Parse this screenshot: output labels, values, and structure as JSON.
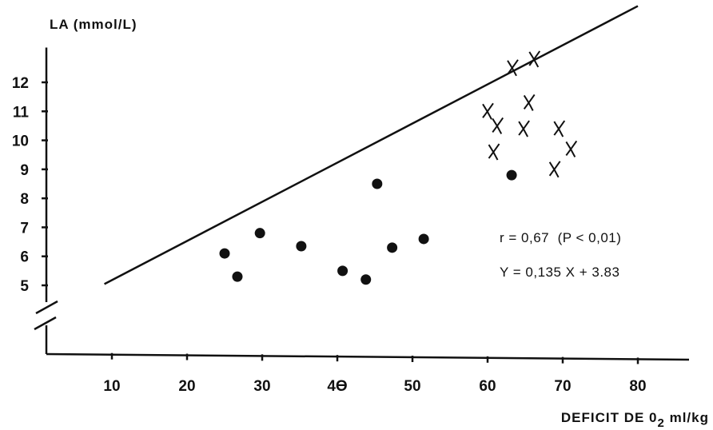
{
  "chart_data": {
    "type": "scatter",
    "ylabel": "LA (mmol/L)",
    "xlabel_main": "DEFICIT DE 0",
    "xlabel_sub": "2",
    "xlabel_unit": "ml/kg",
    "x_ticks": [
      "10",
      "20",
      "30",
      "4ϴ",
      "50",
      "60",
      "70",
      "80"
    ],
    "x_tick_values": [
      10,
      20,
      30,
      40,
      50,
      60,
      70,
      80
    ],
    "y_ticks": [
      "5",
      "6",
      "7",
      "8",
      "9",
      "10",
      "11",
      "12"
    ],
    "y_tick_values": [
      5,
      6,
      7,
      8,
      9,
      10,
      11,
      12
    ],
    "axis_break": true,
    "series": [
      {
        "marker": "dot",
        "points": [
          [
            25,
            6.1
          ],
          [
            26.7,
            5.3
          ],
          [
            29.7,
            6.8
          ],
          [
            35.2,
            6.35
          ],
          [
            40.7,
            5.5
          ],
          [
            43.8,
            5.2
          ],
          [
            45.3,
            8.5
          ],
          [
            47.3,
            6.3
          ],
          [
            51.5,
            6.6
          ],
          [
            63.2,
            8.8
          ]
        ]
      },
      {
        "marker": "x",
        "points": [
          [
            60,
            11.0
          ],
          [
            61.3,
            10.5
          ],
          [
            60.8,
            9.6
          ],
          [
            63.3,
            12.5
          ],
          [
            66.2,
            12.8
          ],
          [
            65.5,
            11.3
          ],
          [
            64.8,
            10.4
          ],
          [
            69.5,
            10.4
          ],
          [
            68.9,
            9.0
          ],
          [
            71.1,
            9.7
          ]
        ]
      }
    ],
    "regression": {
      "slope": 0.135,
      "intercept": 3.83,
      "x_range": [
        9,
        80
      ]
    },
    "annotations": [
      "r = 0,67  (P < 0,01)",
      "Y = 0,135 X + 3.83"
    ],
    "xlim": [
      3,
      86
    ],
    "ylim": [
      3.4,
      13.2
    ],
    "grid": false,
    "legend": "none"
  }
}
